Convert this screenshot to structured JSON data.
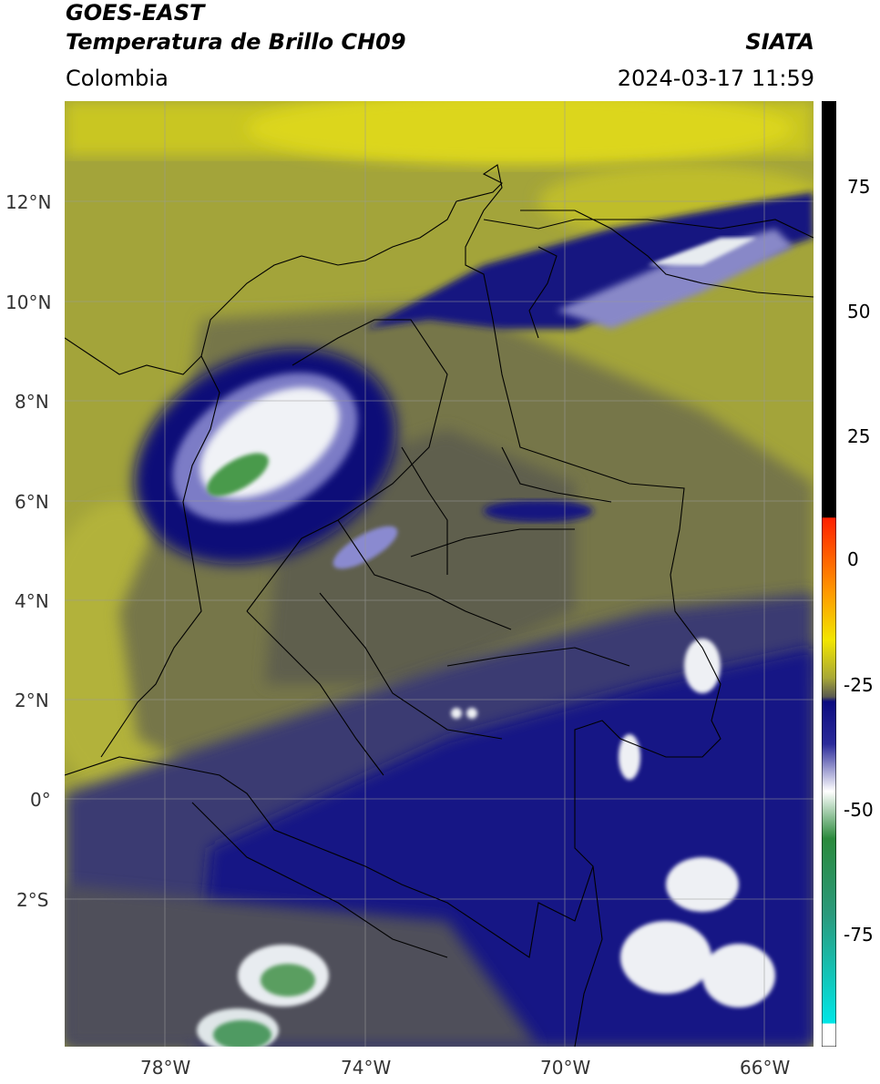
{
  "header": {
    "satellite": "GOES-EAST",
    "product": "Temperatura de Brillo CH09",
    "organization": "SIATA",
    "region": "Colombia",
    "timestamp": "2024-03-17 11:59"
  },
  "map": {
    "lat_labels": [
      "12°N",
      "10°N",
      "8°N",
      "6°N",
      "4°N",
      "2°N",
      "0°",
      "2°S"
    ],
    "lon_labels": [
      "78°W",
      "74°W",
      "70°W",
      "66°W"
    ],
    "gridlines": true
  },
  "colorbar": {
    "tick_labels": [
      "75",
      "50",
      "25",
      "0",
      "-25",
      "-50",
      "-75"
    ],
    "colors": {
      "hot": "#000000",
      "red": "#ff2000",
      "orange": "#ff9a00",
      "yellow": "#f2e600",
      "olive": "#a8a836",
      "gray": "#5a5a50",
      "navy": "#0b0b80",
      "white": "#ffffff",
      "green": "#2a8a3c",
      "cyan": "#00e6e6"
    }
  }
}
